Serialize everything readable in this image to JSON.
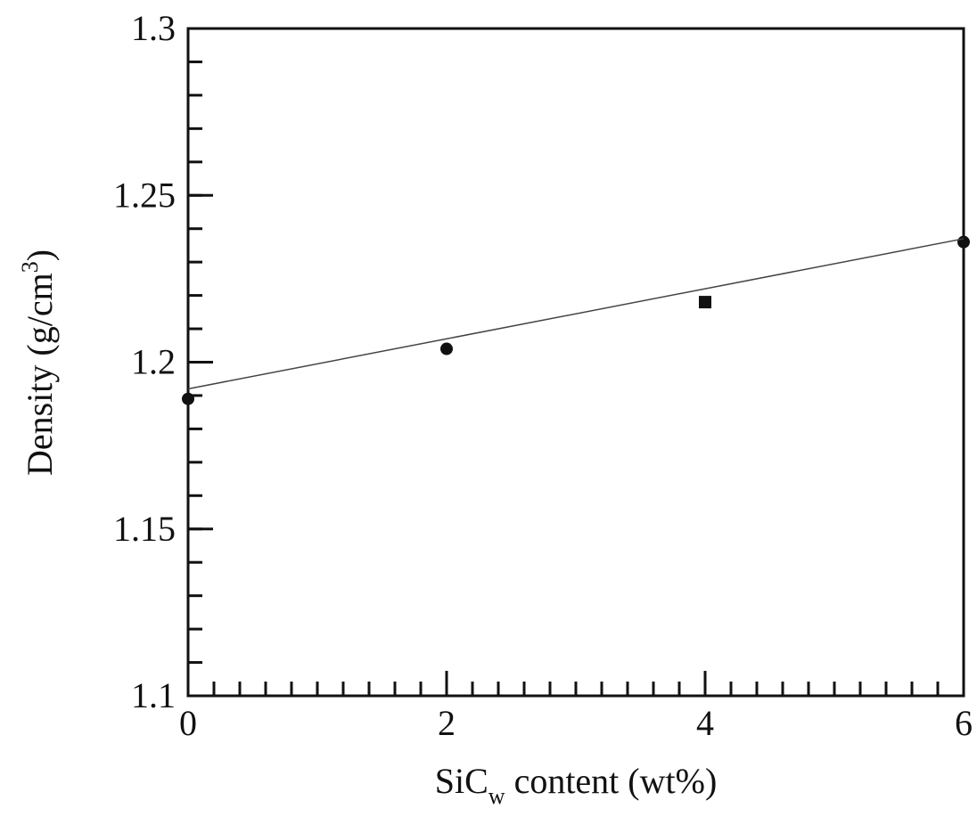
{
  "chart_data": {
    "type": "scatter",
    "xlabel": [
      "SiC",
      "w",
      " content (wt%)"
    ],
    "ylabel": [
      "Density (g/cm",
      "3",
      ")"
    ],
    "xlim": [
      0,
      6
    ],
    "ylim": [
      1.1,
      1.3
    ],
    "xticks": [
      0,
      2,
      4,
      6
    ],
    "yticks": [
      1.1,
      1.15,
      1.2,
      1.25,
      1.3
    ],
    "xminor": 0.2,
    "yminor": 0.01,
    "series": [
      {
        "x": [
          0,
          2,
          4,
          6
        ],
        "values": [
          1.189,
          1.204,
          1.218,
          1.236
        ],
        "color": "#111111",
        "markers": [
          "circle",
          "circle",
          "square",
          "circle"
        ]
      },
      {
        "x": [
          0,
          6
        ],
        "values": [
          1.192,
          1.237
        ],
        "color": "#444444",
        "style": "line"
      }
    ]
  }
}
